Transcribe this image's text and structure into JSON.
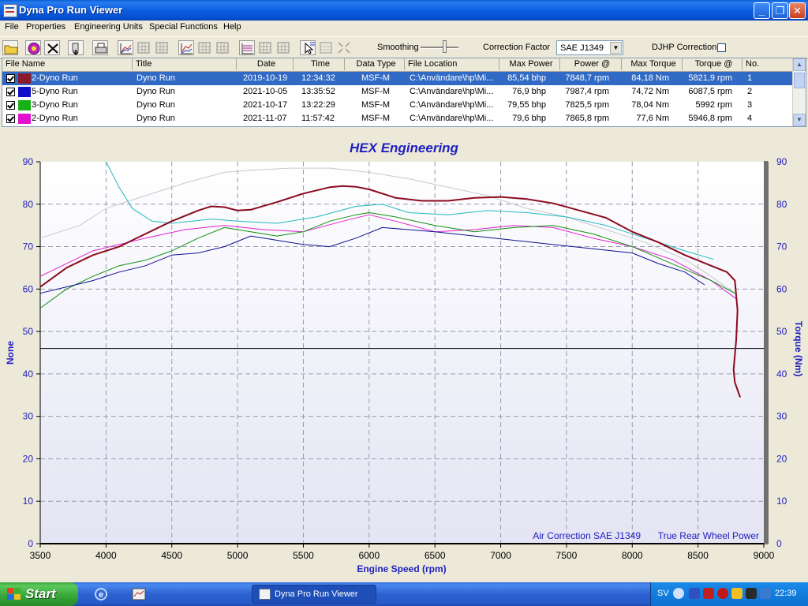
{
  "window": {
    "title": "Dyna Pro Run Viewer"
  },
  "menu": [
    "File",
    "Properties",
    "Engineering Units",
    "Special Functions",
    "Help"
  ],
  "toolbar": {
    "smoothing_label": "Smoothing",
    "smoothing_level": 0.6,
    "correction_label": "Correction Factor",
    "correction_value": "SAE J1349",
    "djhp_label": "DJHP Correction",
    "djhp_checked": false
  },
  "runlist": {
    "columns": [
      "File Name",
      "Title",
      "Date",
      "Time",
      "Data Type",
      "File Location",
      "Max Power",
      "Power @",
      "Max Torque",
      "Torque @",
      "No."
    ],
    "rows": [
      {
        "file": "2-Dyno Run",
        "title": "Dyno Run",
        "date": "2019-10-19",
        "time": "12:34:32",
        "type": "MSF-M",
        "location": "C:\\Användare\\hp\\Mi...",
        "max_power": "85,54 bhp",
        "power_at": "7848,7 rpm",
        "max_torque": "84,18 Nm",
        "torque_at": "5821,9 rpm",
        "no": "1",
        "color": "#8b1a2c",
        "checked": true,
        "selected": true
      },
      {
        "file": "5-Dyno Run",
        "title": "Dyno Run",
        "date": "2021-10-05",
        "time": "13:35:52",
        "type": "MSF-M",
        "location": "C:\\Användare\\hp\\Mi...",
        "max_power": "76,9 bhp",
        "power_at": "7987,4 rpm",
        "max_torque": "74,72 Nm",
        "torque_at": "6087,5 rpm",
        "no": "2",
        "color": "#1010c8",
        "checked": true,
        "selected": false
      },
      {
        "file": "3-Dyno Run",
        "title": "Dyno Run",
        "date": "2021-10-17",
        "time": "13:22:29",
        "type": "MSF-M",
        "location": "C:\\Användare\\hp\\Mi...",
        "max_power": "79,55 bhp",
        "power_at": "7825,5 rpm",
        "max_torque": "78,04 Nm",
        "torque_at": "5992 rpm",
        "no": "3",
        "color": "#18b018",
        "checked": true,
        "selected": false
      },
      {
        "file": "2-Dyno Run",
        "title": "Dyno Run",
        "date": "2021-11-07",
        "time": "11:57:42",
        "type": "MSF-M",
        "location": "C:\\Användare\\hp\\Mi...",
        "max_power": "79,6 bhp",
        "power_at": "7865,8 rpm",
        "max_torque": "77,6 Nm",
        "torque_at": "5946,8 rpm",
        "no": "4",
        "color": "#e010d0",
        "checked": true,
        "selected": false
      }
    ]
  },
  "legend_left": [
    "#c00018",
    "#1818c8",
    "#10a010",
    "#d010c0",
    "#10b8c8",
    "#404040"
  ],
  "legend_right": [
    "#b8b8b8",
    "#707070",
    "#800060",
    "#0a7a3a",
    "#10106a",
    "#900018"
  ],
  "chart_data": {
    "type": "line",
    "title": "HEX Engineering",
    "xlabel": "Engine Speed (rpm)",
    "ylabel": "None",
    "y2label": "Torque (Nm)",
    "xlim": [
      3500,
      9000
    ],
    "ylim": [
      0,
      90
    ],
    "xticks": [
      3500,
      4000,
      4500,
      5000,
      5500,
      6000,
      6500,
      7000,
      7500,
      8000,
      8500,
      9000
    ],
    "yticks": [
      0,
      10,
      20,
      30,
      40,
      50,
      60,
      70,
      80,
      90
    ],
    "grid": true,
    "annotations": [
      "Air Correction SAE J1349",
      "True Rear Wheel Power"
    ],
    "hline": 46,
    "series": [
      {
        "color": "#c8c8d0",
        "width": 1,
        "x": [
          3500,
          3800,
          4000,
          4300,
          4600,
          4900,
          5100,
          5400,
          5700,
          6000,
          6300,
          6600,
          6900,
          7200,
          7500,
          7800,
          8100,
          8400,
          8600,
          8780
        ],
        "y": [
          72,
          75,
          79,
          82,
          85,
          87.5,
          88,
          88.5,
          88.5,
          87.5,
          86,
          84,
          82,
          79,
          77,
          74,
          71,
          67,
          63,
          59
        ]
      },
      {
        "color": "#20b8c0",
        "width": 1,
        "x": [
          4000,
          4100,
          4200,
          4350,
          4500,
          4800,
          5000,
          5300,
          5600,
          5900,
          6100,
          6300,
          6600,
          6900,
          7200,
          7500,
          7800,
          8100,
          8400,
          8620
        ],
        "y": [
          90,
          84,
          79,
          76,
          75.5,
          76.5,
          76,
          75.5,
          77,
          79.5,
          80,
          78,
          77.5,
          78.5,
          78,
          77,
          75,
          72,
          69,
          67
        ]
      },
      {
        "color": "#e020d0",
        "width": 1,
        "x": [
          3500,
          3700,
          3900,
          4100,
          4300,
          4600,
          4900,
          5200,
          5500,
          5800,
          6000,
          6200,
          6500,
          6800,
          7100,
          7400,
          7700,
          8000,
          8300,
          8600,
          8800
        ],
        "y": [
          63,
          66,
          69,
          70.5,
          72,
          74,
          75,
          74,
          73.5,
          76,
          77.5,
          76,
          73.5,
          74,
          75,
          74.5,
          72,
          70,
          67,
          62,
          57.5
        ]
      },
      {
        "color": "#109010",
        "width": 1,
        "x": [
          3500,
          3700,
          3900,
          4100,
          4300,
          4500,
          4700,
          4900,
          5100,
          5300,
          5500,
          5700,
          5900,
          6000,
          6200,
          6500,
          6800,
          7100,
          7400,
          7700,
          8000,
          8300,
          8600,
          8780
        ],
        "y": [
          55.5,
          60,
          63,
          65.5,
          66.8,
          69,
          72,
          74.5,
          73.5,
          72.5,
          73.5,
          76,
          77.5,
          78,
          77,
          75,
          73.5,
          74.5,
          75,
          73,
          70,
          66,
          62,
          59
        ]
      },
      {
        "color": "#101090",
        "width": 1,
        "x": [
          3500,
          3700,
          3900,
          4100,
          4300,
          4500,
          4700,
          4900,
          5100,
          5300,
          5500,
          5700,
          5900,
          6100,
          6300,
          6500,
          6800,
          7100,
          7400,
          7700,
          8000,
          8200,
          8400,
          8550
        ],
        "y": [
          59,
          60.5,
          62,
          64,
          65.5,
          68,
          68.5,
          70,
          72.5,
          71.5,
          70.5,
          70,
          72,
          74.5,
          74,
          73.5,
          72.5,
          71.5,
          70.5,
          69.5,
          68.5,
          66,
          64,
          61
        ]
      },
      {
        "color": "#8b0a1e",
        "width": 2,
        "x": [
          3500,
          3700,
          3900,
          4100,
          4300,
          4500,
          4700,
          4800,
          4900,
          5000,
          5100,
          5300,
          5500,
          5700,
          5800,
          5900,
          6000,
          6200,
          6400,
          6600,
          6800,
          7000,
          7200,
          7400,
          7600,
          7800,
          8000,
          8200,
          8400,
          8600,
          8720,
          8780,
          8800,
          8790,
          8770,
          8780,
          8820
        ],
        "y": [
          60.5,
          65,
          68,
          70,
          73,
          76,
          78.5,
          79.5,
          79.3,
          78.5,
          78.7,
          80.5,
          82.5,
          84,
          84.3,
          84.1,
          83.5,
          81.5,
          80.8,
          80.8,
          81.5,
          81.7,
          81.2,
          80.2,
          78.5,
          76.8,
          73.5,
          71,
          68,
          65.5,
          64,
          62,
          55,
          48,
          41,
          38,
          34.5
        ]
      }
    ]
  },
  "taskbar": {
    "start_label": "Start",
    "task_label": "Dyna Pro Run Viewer",
    "lang": "SV",
    "clock": "22:39"
  }
}
